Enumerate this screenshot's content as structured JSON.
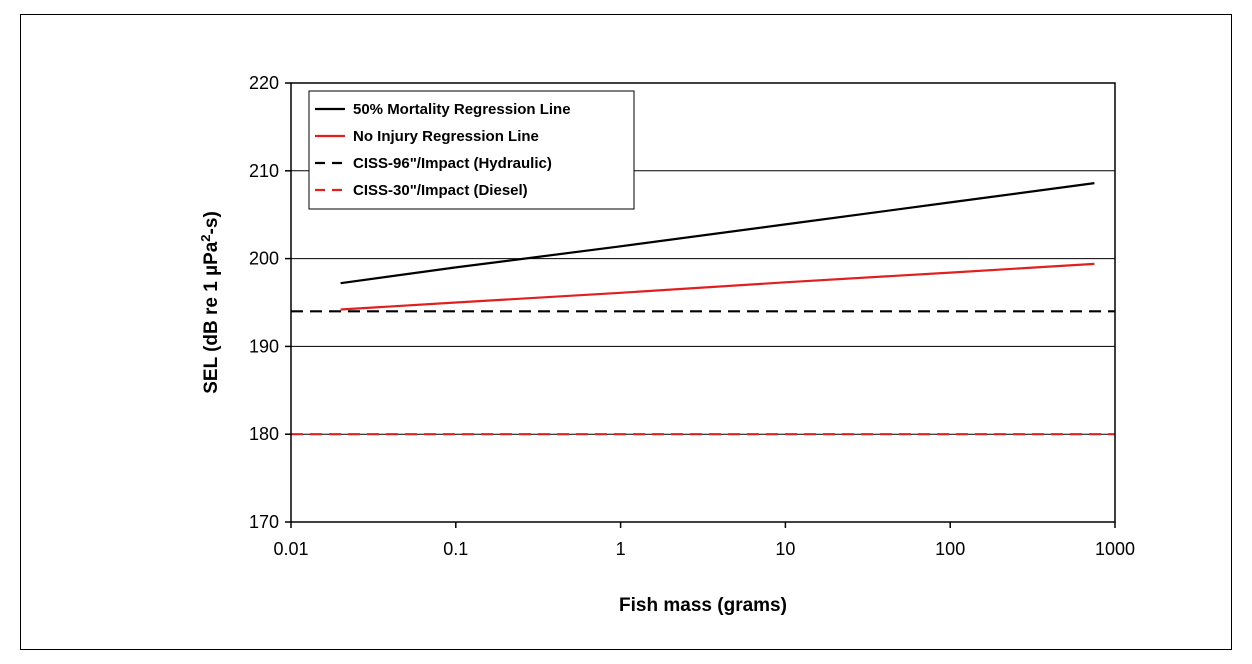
{
  "chart_data": {
    "type": "line",
    "title": "",
    "xlabel": "Fish mass (grams)",
    "ylabel_main": "SEL (dB re 1 µPa",
    "ylabel_sup": "2",
    "ylabel_end": "-s)",
    "x_scale": "log",
    "xlim": [
      0.01,
      1000
    ],
    "ylim": [
      170,
      220
    ],
    "x_ticks": [
      0.01,
      0.1,
      1,
      10,
      100,
      1000
    ],
    "x_tick_labels": [
      "0.01",
      "0.1",
      "1",
      "10",
      "100",
      "1000"
    ],
    "y_ticks": [
      170,
      180,
      190,
      200,
      210,
      220
    ],
    "y_tick_labels": [
      "170",
      "180",
      "190",
      "200",
      "210",
      "220"
    ],
    "grid": "horizontal",
    "legend_position": "top-left",
    "series": [
      {
        "name": "50% Mortality Regression Line",
        "color": "#000000",
        "style": "solid",
        "x": [
          0.02,
          0.1,
          1,
          10,
          100,
          750
        ],
        "y": [
          197.2,
          199.0,
          201.4,
          203.9,
          206.4,
          208.6
        ]
      },
      {
        "name": "No Injury Regression Line",
        "color": "#e0201e",
        "style": "solid",
        "x": [
          0.02,
          0.1,
          1,
          10,
          100,
          750
        ],
        "y": [
          194.2,
          195.0,
          196.1,
          197.3,
          198.4,
          199.4
        ]
      },
      {
        "name": "CISS-96\"/Impact (Hydraulic)",
        "color": "#000000",
        "style": "dashed",
        "x": [
          0.01,
          1000
        ],
        "y": [
          194,
          194
        ]
      },
      {
        "name": "CISS-30\"/Impact (Diesel)",
        "color": "#e0201e",
        "style": "dashed",
        "x": [
          0.01,
          1000
        ],
        "y": [
          180,
          180
        ]
      }
    ]
  }
}
